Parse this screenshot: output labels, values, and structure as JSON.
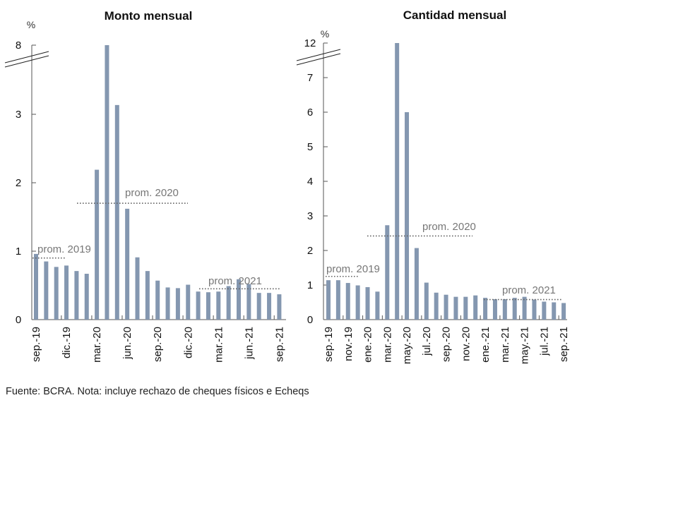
{
  "footnote": "Fuente: BCRA. Nota: incluye rechazo de cheques físicos e Echeqs",
  "chart_data": [
    {
      "type": "bar",
      "title": "Monto mensual",
      "ylabel": "%",
      "axis_break": {
        "below": 3,
        "top_label": 8,
        "note": "y-axis broken between 3 and 8"
      },
      "yticks": [
        0,
        1,
        2,
        3,
        8
      ],
      "ylim": [
        0,
        8
      ],
      "xlabel": "",
      "categories": [
        "sep.-19",
        "oct.-19",
        "nov.-19",
        "dic.-19",
        "ene.-20",
        "feb.-20",
        "mar.-20",
        "abr.-20",
        "may.-20",
        "jun.-20",
        "jul.-20",
        "ago.-20",
        "sep.-20",
        "oct.-20",
        "nov.-20",
        "dic.-20",
        "ene.-21",
        "feb.-21",
        "mar.-21",
        "abr.-21",
        "may.-21",
        "jun.-21",
        "jul.-21",
        "ago.-21",
        "sep.-21"
      ],
      "xtick_labels": [
        "sep.-19",
        "dic.-19",
        "mar.-20",
        "jun.-20",
        "sep.-20",
        "dic.-20",
        "mar.-21",
        "jun.-21",
        "sep.-21"
      ],
      "xtick_step": 3,
      "values": [
        0.96,
        0.85,
        0.77,
        0.79,
        0.71,
        0.67,
        2.19,
        8.0,
        3.67,
        1.62,
        0.91,
        0.71,
        0.57,
        0.47,
        0.46,
        0.51,
        0.41,
        0.4,
        0.41,
        0.49,
        0.59,
        0.52,
        0.39,
        0.39,
        0.37
      ],
      "averages": [
        {
          "label": "prom. 2019",
          "value": 0.9,
          "from": 0,
          "to": 3
        },
        {
          "label": "prom. 2020",
          "value": 1.7,
          "from": 4,
          "to": 15
        },
        {
          "label": "prom. 2021",
          "value": 0.45,
          "from": 16,
          "to": 24
        }
      ],
      "grid": false,
      "legend": "none"
    },
    {
      "type": "bar",
      "title": "Cantidad mensual",
      "ylabel": "%",
      "axis_break": {
        "below": 7,
        "top_label": 12,
        "note": "y-axis broken between 7 and 12"
      },
      "yticks": [
        0,
        1,
        2,
        3,
        4,
        5,
        6,
        7,
        12
      ],
      "ylim": [
        0,
        12
      ],
      "xlabel": "",
      "categories": [
        "sep.-19",
        "oct.-19",
        "nov.-19",
        "dic.-19",
        "ene.-20",
        "feb.-20",
        "mar.-20",
        "abr.-20",
        "may.-20",
        "jun.-20",
        "jul.-20",
        "ago.-20",
        "sep.-20",
        "oct.-20",
        "nov.-20",
        "dic.-20",
        "ene.-21",
        "feb.-21",
        "mar.-21",
        "abr.-21",
        "may.-21",
        "jun.-21",
        "jul.-21",
        "ago.-21",
        "sep.-21"
      ],
      "xtick_labels": [
        "sep.-19",
        "nov.-19",
        "ene.-20",
        "mar.-20",
        "may.-20",
        "jul.-20",
        "sep.-20",
        "nov.-20",
        "ene.-21",
        "mar.-21",
        "may.-21",
        "jul.-21",
        "sep.-21"
      ],
      "xtick_step": 2,
      "values": [
        1.14,
        1.14,
        1.06,
        0.99,
        0.94,
        0.81,
        2.73,
        12.0,
        6.0,
        2.07,
        1.07,
        0.78,
        0.72,
        0.66,
        0.66,
        0.7,
        0.63,
        0.59,
        0.59,
        0.63,
        0.66,
        0.58,
        0.52,
        0.5,
        0.48
      ],
      "averages": [
        {
          "label": "prom. 2019",
          "value": 1.25,
          "from": 0,
          "to": 3
        },
        {
          "label": "prom. 2020",
          "value": 2.42,
          "from": 4,
          "to": 15
        },
        {
          "label": "prom. 2021",
          "value": 0.58,
          "from": 16,
          "to": 24
        }
      ],
      "grid": false,
      "legend": "none"
    }
  ]
}
